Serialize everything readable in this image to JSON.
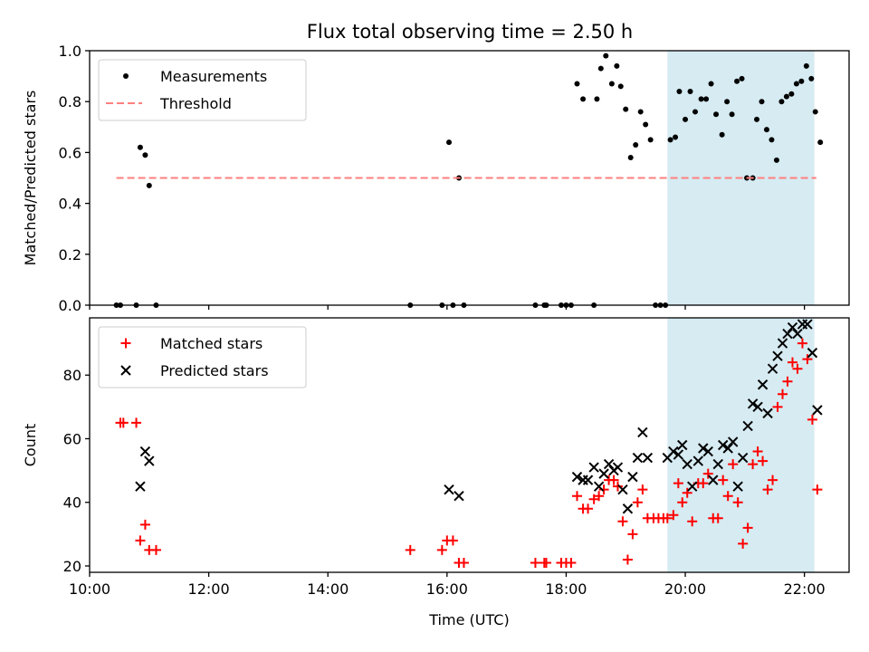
{
  "figure": {
    "title": "Flux total observing time = 2.50 h"
  },
  "chart_data": [
    {
      "type": "scatter",
      "ylabel": "Matched/Predicted stars",
      "xlim": [
        "10:00",
        "22:45"
      ],
      "ylim": [
        0,
        1.0
      ],
      "x_ticks": [
        "10:00",
        "12:00",
        "14:00",
        "16:00",
        "18:00",
        "20:00",
        "22:00"
      ],
      "y_ticks": [
        "0.0",
        "0.2",
        "0.4",
        "0.6",
        "0.8",
        "1.0"
      ],
      "legend_position": "upper-left",
      "shaded_region": {
        "x_start": "19:42",
        "x_end": "22:10",
        "color": "#add8e6"
      },
      "series": [
        {
          "name": "Measurements",
          "marker": "dot",
          "color": "#000000",
          "points": [
            [
              "10:27",
              0.0
            ],
            [
              "10:31",
              0.0
            ],
            [
              "10:47",
              0.0
            ],
            [
              "10:51",
              0.62
            ],
            [
              "10:56",
              0.59
            ],
            [
              "11:00",
              0.47
            ],
            [
              "11:07",
              0.0
            ],
            [
              "15:23",
              0.0
            ],
            [
              "15:55",
              0.0
            ],
            [
              "16:02",
              0.64
            ],
            [
              "16:06",
              0.0
            ],
            [
              "16:12",
              0.5
            ],
            [
              "16:17",
              0.0
            ],
            [
              "17:29",
              0.0
            ],
            [
              "17:38",
              0.0
            ],
            [
              "17:40",
              0.0
            ],
            [
              "17:55",
              0.0
            ],
            [
              "18:00",
              0.0
            ],
            [
              "18:05",
              0.0
            ],
            [
              "18:11",
              0.87
            ],
            [
              "18:17",
              0.81
            ],
            [
              "18:28",
              0.0
            ],
            [
              "18:31",
              0.81
            ],
            [
              "18:35",
              0.93
            ],
            [
              "18:40",
              0.98
            ],
            [
              "18:46",
              0.87
            ],
            [
              "18:51",
              0.94
            ],
            [
              "18:55",
              0.86
            ],
            [
              "19:00",
              0.77
            ],
            [
              "19:05",
              0.58
            ],
            [
              "19:10",
              0.63
            ],
            [
              "19:15",
              0.76
            ],
            [
              "19:20",
              0.71
            ],
            [
              "19:25",
              0.65
            ],
            [
              "19:30",
              0.0
            ],
            [
              "19:35",
              0.0
            ],
            [
              "19:40",
              0.0
            ],
            [
              "19:45",
              0.65
            ],
            [
              "19:50",
              0.66
            ],
            [
              "19:54",
              0.84
            ],
            [
              "20:00",
              0.73
            ],
            [
              "20:05",
              0.84
            ],
            [
              "20:10",
              0.76
            ],
            [
              "20:16",
              0.81
            ],
            [
              "20:21",
              0.81
            ],
            [
              "20:26",
              0.87
            ],
            [
              "20:31",
              0.75
            ],
            [
              "20:37",
              0.67
            ],
            [
              "20:42",
              0.8
            ],
            [
              "20:47",
              0.75
            ],
            [
              "20:52",
              0.88
            ],
            [
              "20:57",
              0.89
            ],
            [
              "21:02",
              0.5
            ],
            [
              "21:08",
              0.5
            ],
            [
              "21:12",
              0.73
            ],
            [
              "21:17",
              0.8
            ],
            [
              "21:22",
              0.69
            ],
            [
              "21:27",
              0.65
            ],
            [
              "21:32",
              0.57
            ],
            [
              "21:37",
              0.8
            ],
            [
              "21:42",
              0.82
            ],
            [
              "21:47",
              0.83
            ],
            [
              "21:52",
              0.87
            ],
            [
              "21:57",
              0.88
            ],
            [
              "22:02",
              0.94
            ],
            [
              "22:07",
              0.89
            ],
            [
              "22:11",
              0.76
            ],
            [
              "22:16",
              0.64
            ]
          ]
        },
        {
          "name": "Threshold",
          "marker": "dashed-line",
          "color": "#ff7f7f",
          "points": [
            [
              "10:27",
              0.5
            ],
            [
              "22:12",
              0.5
            ]
          ]
        }
      ]
    },
    {
      "type": "scatter",
      "xlabel": "Time (UTC)",
      "ylabel": "Count",
      "xlim": [
        "10:00",
        "22:45"
      ],
      "ylim": [
        18,
        98
      ],
      "x_ticks": [
        "10:00",
        "12:00",
        "14:00",
        "16:00",
        "18:00",
        "20:00",
        "22:00"
      ],
      "y_ticks": [
        "20",
        "40",
        "60",
        "80"
      ],
      "legend_position": "upper-left",
      "shaded_region": {
        "x_start": "19:42",
        "x_end": "22:10",
        "color": "#add8e6"
      },
      "series": [
        {
          "name": "Matched stars",
          "marker": "plus",
          "color": "#ff0000",
          "points": [
            [
              "10:31",
              65
            ],
            [
              "10:34",
              65
            ],
            [
              "10:47",
              65
            ],
            [
              "10:51",
              28
            ],
            [
              "10:56",
              33
            ],
            [
              "11:00",
              25
            ],
            [
              "11:07",
              25
            ],
            [
              "15:23",
              25
            ],
            [
              "15:55",
              25
            ],
            [
              "16:00",
              28
            ],
            [
              "16:06",
              28
            ],
            [
              "16:12",
              21
            ],
            [
              "16:17",
              21
            ],
            [
              "17:29",
              21
            ],
            [
              "17:38",
              21
            ],
            [
              "17:40",
              21
            ],
            [
              "17:55",
              21
            ],
            [
              "18:00",
              21
            ],
            [
              "18:05",
              21
            ],
            [
              "18:11",
              42
            ],
            [
              "18:17",
              38
            ],
            [
              "18:22",
              38
            ],
            [
              "18:28",
              41
            ],
            [
              "18:33",
              42
            ],
            [
              "18:38",
              44
            ],
            [
              "18:43",
              47
            ],
            [
              "18:48",
              47
            ],
            [
              "18:52",
              45
            ],
            [
              "18:57",
              34
            ],
            [
              "19:02",
              22
            ],
            [
              "19:07",
              30
            ],
            [
              "19:12",
              40
            ],
            [
              "19:17",
              44
            ],
            [
              "19:22",
              35
            ],
            [
              "19:28",
              35
            ],
            [
              "19:33",
              35
            ],
            [
              "19:38",
              35
            ],
            [
              "19:42",
              35
            ],
            [
              "19:48",
              36
            ],
            [
              "19:53",
              46
            ],
            [
              "19:57",
              40
            ],
            [
              "20:02",
              43
            ],
            [
              "20:07",
              34
            ],
            [
              "20:13",
              46
            ],
            [
              "20:18",
              46
            ],
            [
              "20:23",
              49
            ],
            [
              "20:28",
              35
            ],
            [
              "20:33",
              35
            ],
            [
              "20:38",
              47
            ],
            [
              "20:43",
              42
            ],
            [
              "20:48",
              52
            ],
            [
              "20:53",
              40
            ],
            [
              "20:58",
              27
            ],
            [
              "21:03",
              32
            ],
            [
              "21:08",
              52
            ],
            [
              "21:13",
              56
            ],
            [
              "21:18",
              53
            ],
            [
              "21:23",
              44
            ],
            [
              "21:28",
              47
            ],
            [
              "21:33",
              70
            ],
            [
              "21:38",
              74
            ],
            [
              "21:43",
              78
            ],
            [
              "21:48",
              84
            ],
            [
              "21:53",
              82
            ],
            [
              "21:58",
              90
            ],
            [
              "22:03",
              85
            ],
            [
              "22:08",
              66
            ],
            [
              "22:13",
              44
            ]
          ]
        },
        {
          "name": "Predicted stars",
          "marker": "x",
          "color": "#000000",
          "points": [
            [
              "10:51",
              45
            ],
            [
              "10:56",
              56
            ],
            [
              "11:00",
              53
            ],
            [
              "16:02",
              44
            ],
            [
              "16:12",
              42
            ],
            [
              "18:11",
              48
            ],
            [
              "18:17",
              47
            ],
            [
              "18:22",
              47
            ],
            [
              "18:28",
              51
            ],
            [
              "18:33",
              45
            ],
            [
              "18:38",
              49
            ],
            [
              "18:43",
              52
            ],
            [
              "18:48",
              50
            ],
            [
              "18:52",
              51
            ],
            [
              "18:57",
              44
            ],
            [
              "19:02",
              38
            ],
            [
              "19:07",
              48
            ],
            [
              "19:12",
              54
            ],
            [
              "19:17",
              62
            ],
            [
              "19:22",
              54
            ],
            [
              "19:42",
              54
            ],
            [
              "19:48",
              56
            ],
            [
              "19:53",
              55
            ],
            [
              "19:57",
              58
            ],
            [
              "20:02",
              52
            ],
            [
              "20:07",
              45
            ],
            [
              "20:13",
              53
            ],
            [
              "20:18",
              57
            ],
            [
              "20:23",
              56
            ],
            [
              "20:28",
              47
            ],
            [
              "20:33",
              52
            ],
            [
              "20:38",
              58
            ],
            [
              "20:43",
              57
            ],
            [
              "20:48",
              59
            ],
            [
              "20:53",
              45
            ],
            [
              "20:58",
              54
            ],
            [
              "21:03",
              64
            ],
            [
              "21:08",
              71
            ],
            [
              "21:13",
              70
            ],
            [
              "21:18",
              77
            ],
            [
              "21:23",
              68
            ],
            [
              "21:28",
              82
            ],
            [
              "21:33",
              86
            ],
            [
              "21:38",
              90
            ],
            [
              "21:43",
              93
            ],
            [
              "21:48",
              95
            ],
            [
              "21:53",
              93
            ],
            [
              "21:58",
              96
            ],
            [
              "22:03",
              96
            ],
            [
              "22:08",
              87
            ],
            [
              "22:13",
              69
            ]
          ]
        }
      ]
    }
  ]
}
